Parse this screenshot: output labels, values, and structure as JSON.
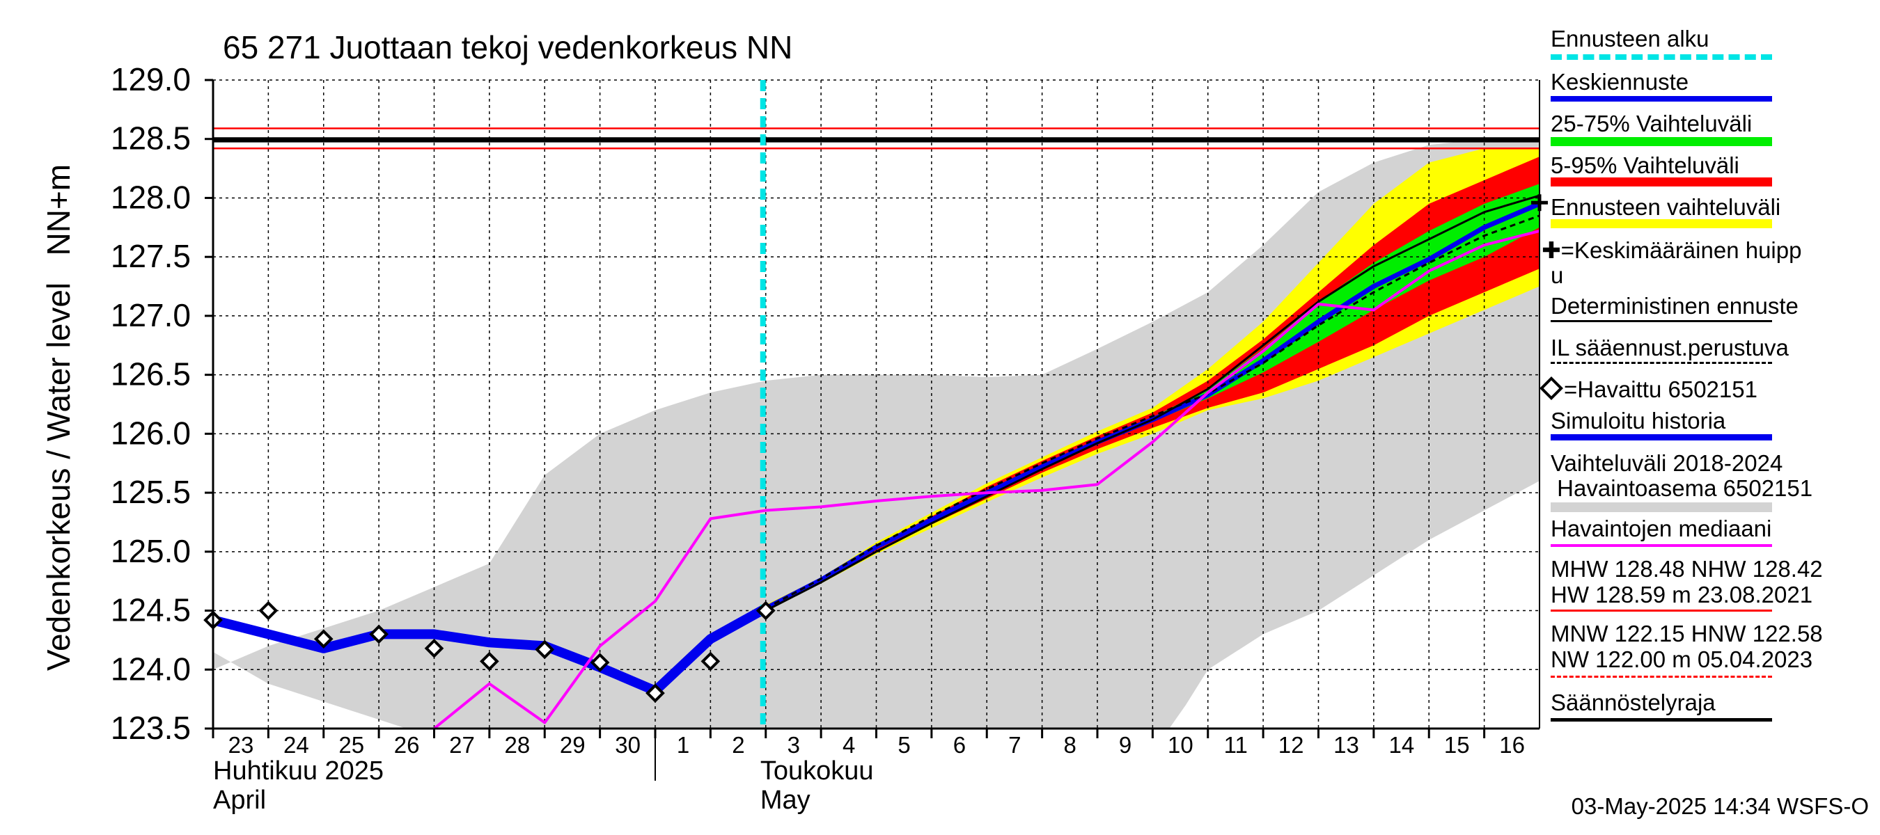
{
  "chart_data": {
    "type": "line",
    "title": "65 271 Juottaan tekoj vedenkorkeus NN",
    "ylabel": "Vedenkorkeus / Water level   NN+m",
    "ylim": [
      123.5,
      129.0
    ],
    "yticks": [
      "129.0",
      "128.5",
      "128.0",
      "127.5",
      "127.0",
      "126.5",
      "126.0",
      "125.5",
      "125.0",
      "124.5",
      "124.0",
      "123.5"
    ],
    "xlim": [
      0,
      24
    ],
    "x_tick_labels": [
      "23",
      "24",
      "25",
      "26",
      "27",
      "28",
      "29",
      "30",
      "1",
      "2",
      "3",
      "4",
      "5",
      "6",
      "7",
      "8",
      "9",
      "10",
      "11",
      "12",
      "13",
      "14",
      "15",
      "16"
    ],
    "month_labels": [
      {
        "fi": "Huhtikuu  2025",
        "en": "April"
      },
      {
        "fi": "Toukokuu",
        "en": "May"
      }
    ],
    "forecast_start_x": 10,
    "reference_lines": [
      {
        "name": "HW",
        "value": 128.59,
        "color": "#ff0000"
      },
      {
        "name": "MHW",
        "value": 128.48,
        "color": "#000000"
      },
      {
        "name": "NHW",
        "value": 128.42,
        "color": "#ff0000"
      },
      {
        "name": "Säännöstelyraja",
        "value": 128.5,
        "color": "#000000"
      }
    ],
    "range_2018_2024": {
      "upper": [
        [
          0,
          124.0
        ],
        [
          1,
          124.2
        ],
        [
          2,
          124.35
        ],
        [
          3,
          124.5
        ],
        [
          4,
          124.7
        ],
        [
          5,
          124.9
        ],
        [
          6,
          125.65
        ],
        [
          7,
          126.0
        ],
        [
          8,
          126.2
        ],
        [
          9,
          126.35
        ],
        [
          10,
          126.45
        ],
        [
          11,
          126.5
        ],
        [
          12,
          126.5
        ],
        [
          13,
          126.5
        ],
        [
          14,
          126.48
        ],
        [
          15,
          126.5
        ],
        [
          16,
          126.72
        ],
        [
          17,
          126.95
        ],
        [
          18,
          127.2
        ],
        [
          19,
          127.6
        ],
        [
          20,
          128.05
        ],
        [
          21,
          128.3
        ],
        [
          22,
          128.45
        ],
        [
          23,
          128.5
        ],
        [
          24,
          128.5
        ]
      ],
      "lower": [
        [
          24,
          125.6
        ],
        [
          23,
          125.35
        ],
        [
          22,
          125.1
        ],
        [
          21,
          124.8
        ],
        [
          20,
          124.5
        ],
        [
          19,
          124.3
        ],
        [
          18,
          124.0
        ],
        [
          17.6,
          123.7
        ],
        [
          17.3,
          123.5
        ],
        [
          3.5,
          123.5
        ],
        [
          1,
          123.88
        ],
        [
          0,
          124.15
        ]
      ]
    },
    "forecast_bands": [
      {
        "name": "Ennusteen vaihteluväli",
        "color": "#ffff00",
        "x": [
          10,
          11,
          12,
          13,
          14,
          15,
          16,
          17,
          18,
          19,
          20,
          21,
          22,
          23,
          24
        ],
        "upper": [
          124.55,
          124.78,
          125.08,
          125.33,
          125.58,
          125.8,
          126.02,
          126.22,
          126.55,
          126.95,
          127.45,
          127.95,
          128.3,
          128.42,
          128.42
        ],
        "lower": [
          124.5,
          124.73,
          124.98,
          125.2,
          125.42,
          125.63,
          125.83,
          126.0,
          126.2,
          126.3,
          126.45,
          126.65,
          126.85,
          127.05,
          127.25
        ]
      },
      {
        "name": "5-95% Vaihteluväli",
        "color": "#ff0000",
        "x": [
          10,
          11,
          12,
          13,
          14,
          15,
          16,
          17,
          18,
          19,
          20,
          21,
          22,
          23,
          24
        ],
        "upper": [
          124.53,
          124.77,
          125.06,
          125.3,
          125.55,
          125.77,
          125.98,
          126.18,
          126.45,
          126.8,
          127.2,
          127.6,
          127.95,
          128.15,
          128.35
        ],
        "lower": [
          124.51,
          124.74,
          125.0,
          125.23,
          125.45,
          125.67,
          125.87,
          126.05,
          126.22,
          126.35,
          126.55,
          126.75,
          127.0,
          127.2,
          127.4
        ]
      },
      {
        "name": "25-75% Vaihteluväli",
        "color": "#00ee00",
        "x": [
          10,
          11,
          12,
          13,
          14,
          15,
          16,
          17,
          18,
          19,
          20,
          21,
          22,
          23,
          24
        ],
        "upper": [
          124.52,
          124.76,
          125.04,
          125.28,
          125.52,
          125.74,
          125.95,
          126.14,
          126.38,
          126.72,
          127.12,
          127.45,
          127.72,
          127.95,
          128.12
        ],
        "lower": [
          124.52,
          124.75,
          125.02,
          125.26,
          125.49,
          125.7,
          125.91,
          126.1,
          126.3,
          126.52,
          126.78,
          127.05,
          127.3,
          127.5,
          127.75
        ]
      }
    ],
    "series": [
      {
        "name": "Simuloitu historia",
        "color": "#0000ee",
        "x": [
          0,
          1,
          2,
          3,
          4,
          5,
          6,
          7,
          8,
          9,
          10
        ],
        "values": [
          124.42,
          124.3,
          124.18,
          124.3,
          124.3,
          124.23,
          124.2,
          124.02,
          123.82,
          124.26,
          124.52
        ]
      },
      {
        "name": "Keskiennuste",
        "color": "#0000ee",
        "x": [
          10,
          11,
          12,
          13,
          14,
          15,
          16,
          17,
          18,
          19,
          20,
          21,
          22,
          23,
          24
        ],
        "values": [
          124.52,
          124.76,
          125.04,
          125.27,
          125.5,
          125.72,
          125.93,
          126.12,
          126.33,
          126.62,
          126.95,
          127.25,
          127.48,
          127.75,
          127.95
        ]
      },
      {
        "name": "Deterministinen ennuste",
        "color": "#000000",
        "x": [
          10,
          11,
          12,
          13,
          14,
          15,
          16,
          17,
          18,
          19,
          20,
          21,
          22,
          23,
          24
        ],
        "values": [
          124.5,
          124.74,
          125.0,
          125.24,
          125.47,
          125.7,
          125.92,
          126.12,
          126.38,
          126.75,
          127.12,
          127.42,
          127.65,
          127.88,
          128.02
        ]
      },
      {
        "name": "IL sääennust.perustuva",
        "color": "#000000",
        "dashed": true,
        "x": [
          10,
          11,
          12,
          13,
          14,
          15,
          16,
          17,
          18,
          19,
          20,
          21,
          22,
          23,
          24
        ],
        "values": [
          124.52,
          124.77,
          125.05,
          125.3,
          125.53,
          125.75,
          125.96,
          126.15,
          126.34,
          126.6,
          126.92,
          127.2,
          127.45,
          127.68,
          127.85
        ]
      },
      {
        "name": "Havaintojen mediaani",
        "color": "#ff00ff",
        "x": [
          4,
          5,
          6,
          7,
          8,
          9,
          10,
          11,
          12,
          13,
          14,
          15,
          16,
          17,
          18,
          19,
          20,
          21,
          22,
          23,
          24
        ],
        "values": [
          123.5,
          123.88,
          123.55,
          124.2,
          124.58,
          125.28,
          125.35,
          125.38,
          125.43,
          125.47,
          125.5,
          125.52,
          125.57,
          125.93,
          126.35,
          126.7,
          127.1,
          127.05,
          127.38,
          127.6,
          127.72
        ]
      }
    ],
    "observed": {
      "name": "Havaittu 6502151",
      "x": [
        0,
        1,
        2,
        3,
        4,
        5,
        6,
        7,
        8,
        9,
        10
      ],
      "values": [
        124.42,
        124.5,
        124.26,
        124.3,
        124.18,
        124.07,
        124.17,
        124.06,
        123.8,
        124.07,
        124.5
      ]
    },
    "mean_peak": {
      "name": "Keskimääräinen huippu",
      "x": 24,
      "value": 127.96
    }
  },
  "legend": {
    "forecast_start": "Ennusteen alku",
    "mean_forecast": "Keskiennuste",
    "band_25_75": "25-75% Vaihteluväli",
    "band_5_95": "5-95% Vaihteluväli",
    "forecast_range": "Ennusteen vaihteluväli",
    "mean_peak_a": "=Keskimääräinen huipp",
    "mean_peak_b": "u",
    "deterministic": "Deterministinen ennuste",
    "il_weather": "IL sääennust.perustuva",
    "observed": "=Havaittu 6502151",
    "simulated": "Simuloitu historia",
    "variation_a": "Vaihteluväli 2018-2024",
    "variation_b": " Havaintoasema 6502151",
    "median": "Havaintojen mediaani",
    "mhw_a": "MHW 128.48 NHW 128.42",
    "mhw_b": "HW 128.59 m 23.08.2021",
    "mnw_a": "MNW 122.15 HNW 122.58",
    "mnw_b": "NW 122.00 m 05.04.2023",
    "regulation": "Säännöstelyraja"
  },
  "colors": {
    "forecast_start": "#00e5e5",
    "mean_forecast": "#0000ee",
    "band_25_75": "#00ee00",
    "band_5_95": "#ff0000",
    "forecast_range": "#ffff00",
    "simulated": "#0000ee",
    "variation": "#d3d3d3",
    "median": "#ff00ff",
    "hw_line": "#ff0000",
    "nw_line": "#ff0000"
  },
  "footer": "03-May-2025 14:34 WSFS-O"
}
